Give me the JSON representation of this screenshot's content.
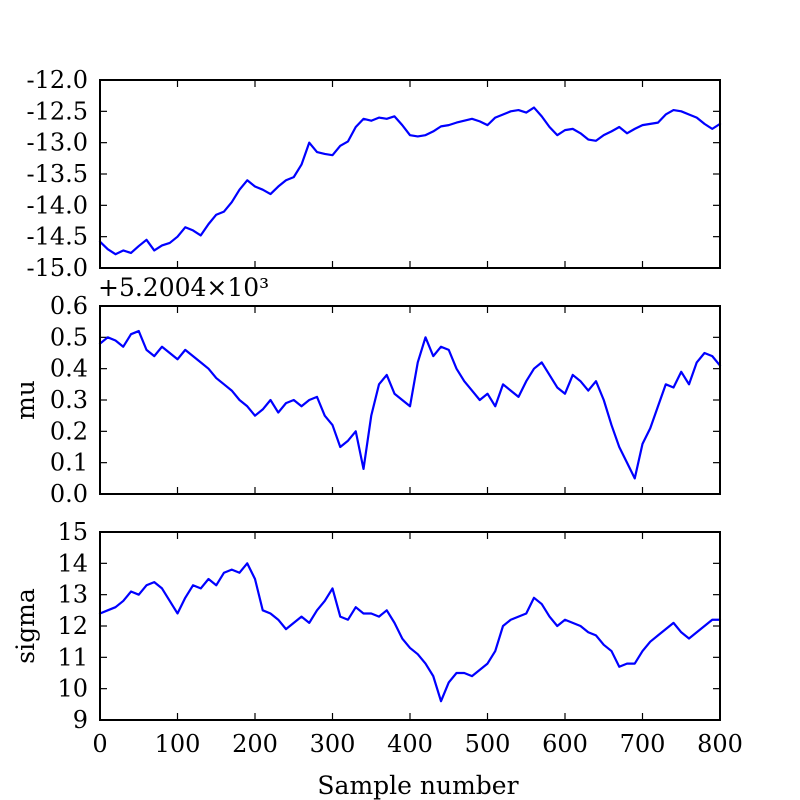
{
  "figure": {
    "xlabel": "Sample number",
    "x_ticks": [
      "0",
      "100",
      "200",
      "300",
      "400",
      "500",
      "600",
      "700",
      "800"
    ]
  },
  "chart_data": [
    {
      "type": "line",
      "title": "",
      "xlabel": "",
      "ylabel": "",
      "xlim": [
        0,
        800
      ],
      "ylim": [
        -15.0,
        -12.0
      ],
      "y_ticks": [
        "-12.0",
        "-12.5",
        "-13.0",
        "-13.5",
        "-14.0",
        "-14.5",
        "-15.0"
      ],
      "y_offset_text": "",
      "line_color": "#0000ff",
      "grid": false,
      "series": [
        {
          "x": [
            0,
            10,
            20,
            30,
            40,
            50,
            60,
            70,
            80,
            90,
            100,
            110,
            120,
            130,
            140,
            150,
            160,
            170,
            180,
            190,
            200,
            210,
            220,
            230,
            240,
            250,
            260,
            270,
            280,
            290,
            300,
            310,
            320,
            330,
            340,
            350,
            360,
            370,
            380,
            390,
            400,
            410,
            420,
            430,
            440,
            450,
            460,
            470,
            480,
            490,
            500,
            510,
            520,
            530,
            540,
            550,
            560,
            570,
            580,
            590,
            600,
            610,
            620,
            630,
            640,
            650,
            660,
            670,
            680,
            690,
            700,
            710,
            720,
            730,
            740,
            750,
            760,
            770,
            780,
            790,
            800
          ],
          "values": [
            -14.58,
            -14.7,
            -14.78,
            -14.72,
            -14.76,
            -14.65,
            -14.55,
            -14.72,
            -14.64,
            -14.6,
            -14.5,
            -14.35,
            -14.4,
            -14.48,
            -14.3,
            -14.15,
            -14.1,
            -13.95,
            -13.75,
            -13.6,
            -13.7,
            -13.75,
            -13.82,
            -13.7,
            -13.6,
            -13.55,
            -13.35,
            -13.0,
            -13.15,
            -13.18,
            -13.2,
            -13.05,
            -12.98,
            -12.75,
            -12.62,
            -12.65,
            -12.6,
            -12.62,
            -12.58,
            -12.72,
            -12.88,
            -12.9,
            -12.88,
            -12.82,
            -12.74,
            -12.72,
            -12.68,
            -12.65,
            -12.62,
            -12.66,
            -12.72,
            -12.6,
            -12.55,
            -12.5,
            -12.48,
            -12.52,
            -12.44,
            -12.58,
            -12.75,
            -12.88,
            -12.8,
            -12.78,
            -12.85,
            -12.95,
            -12.97,
            -12.88,
            -12.82,
            -12.75,
            -12.85,
            -12.78,
            -12.72,
            -12.7,
            -12.68,
            -12.55,
            -12.48,
            -12.5,
            -12.55,
            -12.6,
            -12.7,
            -12.78,
            -12.7
          ]
        }
      ]
    },
    {
      "type": "line",
      "title": "",
      "xlabel": "",
      "ylabel": "mu",
      "xlim": [
        0,
        800
      ],
      "ylim": [
        0.0,
        0.6
      ],
      "y_ticks": [
        "0.6",
        "0.5",
        "0.4",
        "0.3",
        "0.2",
        "0.1",
        "0.0"
      ],
      "y_offset_text": "+5.2004×10³",
      "line_color": "#0000ff",
      "grid": false,
      "series": [
        {
          "x": [
            0,
            10,
            20,
            30,
            40,
            50,
            60,
            70,
            80,
            90,
            100,
            110,
            120,
            130,
            140,
            150,
            160,
            170,
            180,
            190,
            200,
            210,
            220,
            230,
            240,
            250,
            260,
            270,
            280,
            290,
            300,
            310,
            320,
            330,
            340,
            350,
            360,
            370,
            380,
            390,
            400,
            410,
            420,
            430,
            440,
            450,
            460,
            470,
            480,
            490,
            500,
            510,
            520,
            530,
            540,
            550,
            560,
            570,
            580,
            590,
            600,
            610,
            620,
            630,
            640,
            650,
            660,
            670,
            680,
            690,
            700,
            710,
            720,
            730,
            740,
            750,
            760,
            770,
            780,
            790,
            800
          ],
          "values": [
            0.48,
            0.5,
            0.49,
            0.47,
            0.51,
            0.52,
            0.46,
            0.44,
            0.47,
            0.45,
            0.43,
            0.46,
            0.44,
            0.42,
            0.4,
            0.37,
            0.35,
            0.33,
            0.3,
            0.28,
            0.25,
            0.27,
            0.3,
            0.26,
            0.29,
            0.3,
            0.28,
            0.3,
            0.31,
            0.25,
            0.22,
            0.15,
            0.17,
            0.2,
            0.08,
            0.25,
            0.35,
            0.38,
            0.32,
            0.3,
            0.28,
            0.42,
            0.5,
            0.44,
            0.47,
            0.46,
            0.4,
            0.36,
            0.33,
            0.3,
            0.32,
            0.28,
            0.35,
            0.33,
            0.31,
            0.36,
            0.4,
            0.42,
            0.38,
            0.34,
            0.32,
            0.38,
            0.36,
            0.33,
            0.36,
            0.3,
            0.22,
            0.15,
            0.1,
            0.05,
            0.16,
            0.21,
            0.28,
            0.35,
            0.34,
            0.39,
            0.35,
            0.42,
            0.45,
            0.44,
            0.41
          ]
        }
      ]
    },
    {
      "type": "line",
      "title": "",
      "xlabel": "Sample number",
      "ylabel": "sigma",
      "xlim": [
        0,
        800
      ],
      "ylim": [
        9,
        15
      ],
      "y_ticks": [
        "15",
        "14",
        "13",
        "12",
        "11",
        "10",
        "9"
      ],
      "y_offset_text": "",
      "line_color": "#0000ff",
      "grid": false,
      "series": [
        {
          "x": [
            0,
            10,
            20,
            30,
            40,
            50,
            60,
            70,
            80,
            90,
            100,
            110,
            120,
            130,
            140,
            150,
            160,
            170,
            180,
            190,
            200,
            210,
            220,
            230,
            240,
            250,
            260,
            270,
            280,
            290,
            300,
            310,
            320,
            330,
            340,
            350,
            360,
            370,
            380,
            390,
            400,
            410,
            420,
            430,
            440,
            450,
            460,
            470,
            480,
            490,
            500,
            510,
            520,
            530,
            540,
            550,
            560,
            570,
            580,
            590,
            600,
            610,
            620,
            630,
            640,
            650,
            660,
            670,
            680,
            690,
            700,
            710,
            720,
            730,
            740,
            750,
            760,
            770,
            780,
            790,
            800
          ],
          "values": [
            12.4,
            12.5,
            12.6,
            12.8,
            13.1,
            13.0,
            13.3,
            13.4,
            13.2,
            12.8,
            12.4,
            12.9,
            13.3,
            13.2,
            13.5,
            13.3,
            13.7,
            13.8,
            13.7,
            14.0,
            13.5,
            12.5,
            12.4,
            12.2,
            11.9,
            12.1,
            12.3,
            12.1,
            12.5,
            12.8,
            13.2,
            12.3,
            12.2,
            12.6,
            12.4,
            12.4,
            12.3,
            12.5,
            12.1,
            11.6,
            11.3,
            11.1,
            10.8,
            10.4,
            9.6,
            10.2,
            10.5,
            10.5,
            10.4,
            10.6,
            10.8,
            11.2,
            12.0,
            12.2,
            12.3,
            12.4,
            12.9,
            12.7,
            12.3,
            12.0,
            12.2,
            12.1,
            12.0,
            11.8,
            11.7,
            11.4,
            11.2,
            10.7,
            10.8,
            10.8,
            11.2,
            11.5,
            11.7,
            11.9,
            12.1,
            11.8,
            11.6,
            11.8,
            12.0,
            12.2,
            12.2
          ]
        }
      ]
    }
  ]
}
